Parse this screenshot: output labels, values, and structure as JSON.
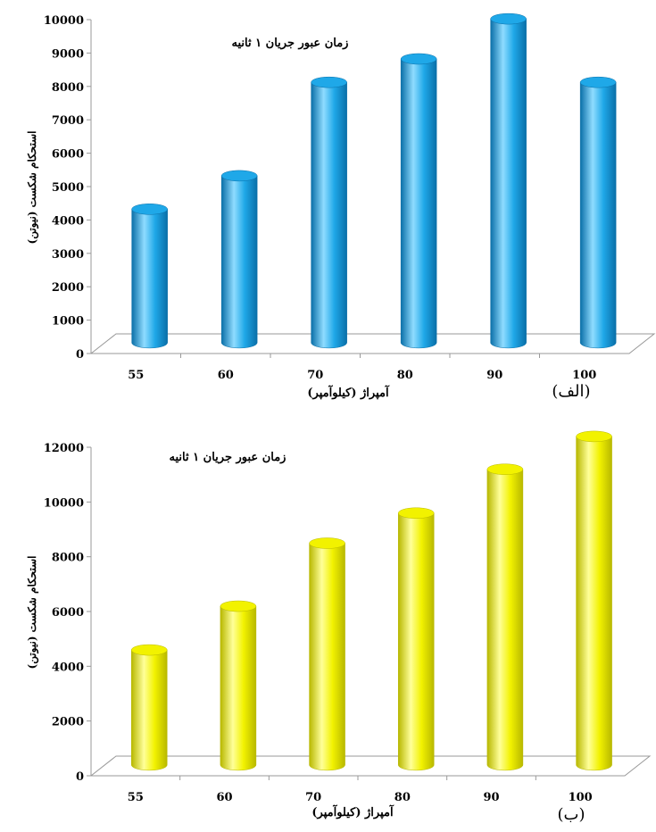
{
  "chart_data": [
    {
      "type": "bar",
      "panel_label": "(الف)",
      "annotation": "زمان عبور جریان ۱ ثانیه",
      "xlabel": "آمپراژ (کیلوآمپر)",
      "ylabel": "استحکام شکست (نیوتن)",
      "categories": [
        "55",
        "60",
        "70",
        "80",
        "90",
        "100"
      ],
      "values": [
        4000,
        5000,
        7800,
        8500,
        9700,
        7800
      ],
      "yticks": [
        "0",
        "1000",
        "2000",
        "3000",
        "4000",
        "5000",
        "6000",
        "7000",
        "8000",
        "9000",
        "10000"
      ],
      "ylim": [
        0,
        10000
      ],
      "bar_color": "#1fa8e8",
      "bar_highlight": "#8fdcff",
      "bar_shade": "#0a6fa8"
    },
    {
      "type": "bar",
      "panel_label": "(ب)",
      "annotation": "زمان عبور جریان ۱ ثانیه",
      "xlabel": "آمپراژ (کیلوآمپر)",
      "ylabel": "استحکام شکست (نیوتن)",
      "categories": [
        "55",
        "60",
        "70",
        "80",
        "90",
        "100"
      ],
      "values": [
        4200,
        5800,
        8100,
        9200,
        10800,
        12000
      ],
      "yticks": [
        "0",
        "2000",
        "4000",
        "6000",
        "8000",
        "10000",
        "12000"
      ],
      "ylim": [
        0,
        12000
      ],
      "bar_color": "#f2f200",
      "bar_highlight": "#ffff99",
      "bar_shade": "#b8b800"
    }
  ]
}
